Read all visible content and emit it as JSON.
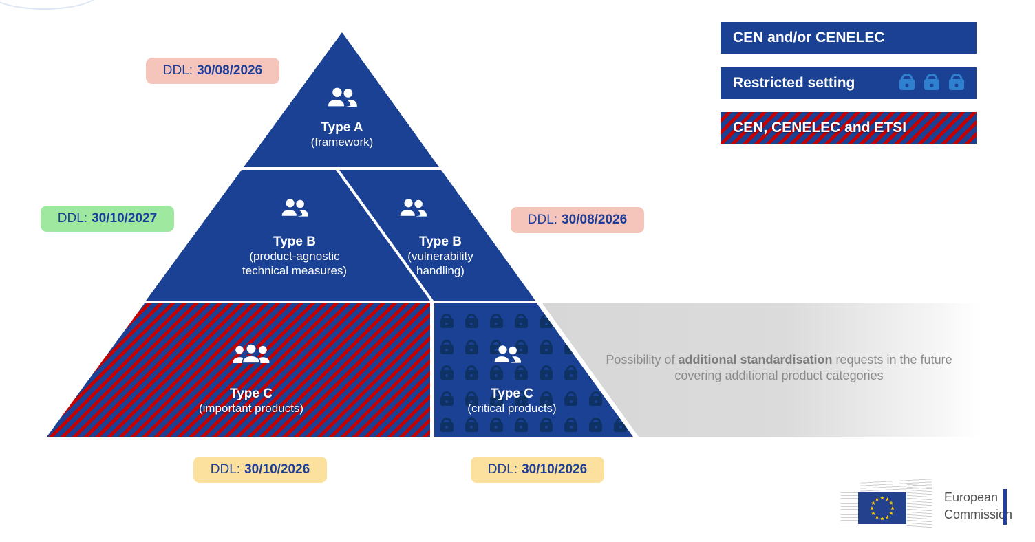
{
  "pyramid": {
    "tiers": {
      "type_a": {
        "title": "Type A",
        "subtitle": "(framework)"
      },
      "type_b_left": {
        "title": "Type B",
        "subtitle": "(product-agnostic technical measures)"
      },
      "type_b_right": {
        "title": "Type B",
        "subtitle": "(vulnerability handling)"
      },
      "type_c_left": {
        "title": "Type C",
        "subtitle": "(important products)"
      },
      "type_c_right": {
        "title": "Type C",
        "subtitle": "(critical products)"
      }
    }
  },
  "ddl": {
    "top": {
      "prefix": "DDL:",
      "date": "30/08/2026",
      "color": "pink"
    },
    "mid_left": {
      "prefix": "DDL:",
      "date": "30/10/2027",
      "color": "green"
    },
    "mid_right": {
      "prefix": "DDL:",
      "date": "30/08/2026",
      "color": "pink"
    },
    "bot_left": {
      "prefix": "DDL:",
      "date": "30/10/2026",
      "color": "yellow"
    },
    "bot_right": {
      "prefix": "DDL:",
      "date": "30/10/2026",
      "color": "yellow"
    }
  },
  "legend": {
    "items": {
      "cen_cenelec": {
        "label": "CEN and/or CENELEC",
        "style": "solid-blue"
      },
      "restricted": {
        "label": "Restricted setting",
        "style": "solid-blue-with-locks"
      },
      "cen_cen_etsi": {
        "label": "CEN, CENELEC and ETSI",
        "style": "blue-red-hatched"
      }
    }
  },
  "note": {
    "pre": "Possibility of ",
    "bold": "additional standardisation",
    "post": " requests in the future covering additional product categories"
  },
  "footer": {
    "logo_line1": "European",
    "logo_line2": "Commission"
  },
  "icons": {
    "tier_a": "people-icon",
    "tier_b_left": "people-icon",
    "tier_b_right": "people-icon",
    "tier_c_left": "group-icon",
    "tier_c_right": "people-icon",
    "restricted": "lock-icon",
    "critical_pattern": "lock-icon-grid",
    "footer": "eu-flag-icon"
  },
  "colors": {
    "pyramid_blue": "#1a4193",
    "hatch_red": "#c40000",
    "lock_navy": "#0e3263",
    "legend_lock_blue": "#2f80cf",
    "ddl_text_blue": "#1c3e9b",
    "badge_pink": "#f5c5bb",
    "badge_green": "#9fe89f",
    "badge_yellow": "#fbe19d",
    "gray_band": "#d7d7d7",
    "note_gray": "#8b8b8b"
  }
}
